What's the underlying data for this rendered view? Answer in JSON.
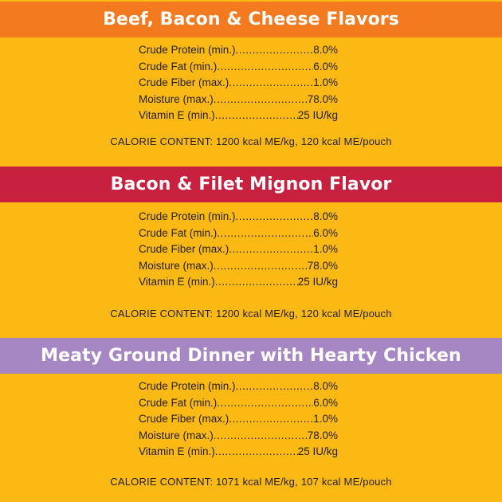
{
  "sections": [
    {
      "title": "Beef, Bacon & Cheese Flavors",
      "banner_color": "#f47a20",
      "nutrients": [
        {
          "label": "Crude Protein (min.)",
          "value": "8.0%"
        },
        {
          "label": "Crude Fat (min.)",
          "value": "6.0%"
        },
        {
          "label": "Crude Fiber (max.)",
          "value": "1.0%"
        },
        {
          "label": "Moisture (max.)",
          "value": "78.0%"
        },
        {
          "label": "Vitamin E (min.)",
          "value": "25 IU/kg"
        }
      ],
      "calorie": "CALORIE CONTENT: 1200 kcal ME/kg, 120 kcal ME/pouch"
    },
    {
      "title": "Bacon & Filet Mignon Flavor",
      "banner_color": "#c8203f",
      "nutrients": [
        {
          "label": "Crude Protein (min.)",
          "value": "8.0%"
        },
        {
          "label": "Crude Fat (min.)",
          "value": "6.0%"
        },
        {
          "label": "Crude Fiber (max.)",
          "value": "1.0%"
        },
        {
          "label": "Moisture (max.)",
          "value": "78.0%"
        },
        {
          "label": "Vitamin E (min.)",
          "value": "25 IU/kg"
        }
      ],
      "calorie": "CALORIE CONTENT: 1200 kcal ME/kg, 120 kcal ME/pouch"
    },
    {
      "title": "Meaty Ground Dinner with Hearty Chicken",
      "banner_color": "#a786c4",
      "nutrients": [
        {
          "label": "Crude Protein (min.)",
          "value": "8.0%"
        },
        {
          "label": "Crude Fat (min.)",
          "value": "6.0%"
        },
        {
          "label": "Crude Fiber (max.)",
          "value": "1.0%"
        },
        {
          "label": "Moisture (max.)",
          "value": "78.0%"
        },
        {
          "label": "Vitamin E (min.)",
          "value": "25 IU/kg"
        }
      ],
      "calorie": "CALORIE CONTENT: 1071 kcal ME/kg, 107 kcal ME/pouch"
    }
  ],
  "background_color": "#fdb913"
}
